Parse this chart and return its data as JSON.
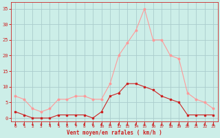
{
  "hours": [
    0,
    1,
    2,
    3,
    4,
    5,
    6,
    7,
    8,
    9,
    10,
    11,
    12,
    13,
    14,
    15,
    16,
    17,
    18,
    19,
    20,
    21,
    22,
    23
  ],
  "wind_avg": [
    2,
    1,
    0,
    0,
    0,
    1,
    1,
    1,
    1,
    0,
    2,
    7,
    8,
    11,
    11,
    10,
    9,
    7,
    6,
    5,
    1,
    1,
    1,
    1
  ],
  "wind_gust": [
    7,
    6,
    3,
    2,
    3,
    6,
    6,
    7,
    7,
    6,
    6,
    11,
    20,
    24,
    28,
    35,
    25,
    25,
    20,
    19,
    8,
    6,
    5,
    3
  ],
  "bg_color": "#cceee8",
  "grid_color": "#aacccc",
  "line_avg_color": "#cc2222",
  "line_gust_color": "#ff9999",
  "xlabel": "Vent moyen/en rafales ( km/h )",
  "xlabel_color": "#cc2222",
  "tick_color": "#cc2222",
  "yticks": [
    0,
    5,
    10,
    15,
    20,
    25,
    30,
    35
  ],
  "ylim": [
    -1,
    37
  ],
  "xlim": [
    -0.5,
    23.5
  ]
}
